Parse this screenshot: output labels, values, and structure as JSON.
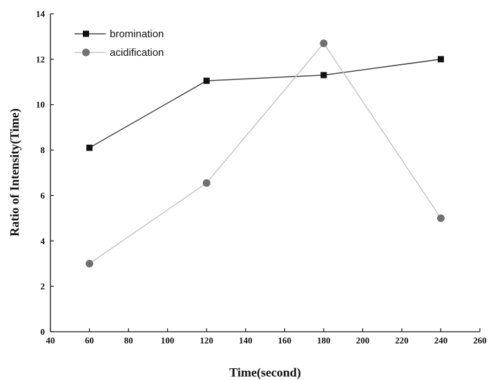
{
  "chart_data": {
    "type": "line",
    "xlabel": "Time(second)",
    "ylabel": "Ratio of Intensity(Time)",
    "xlim": [
      40,
      260
    ],
    "ylim": [
      0,
      14
    ],
    "xticks": [
      40,
      60,
      80,
      100,
      120,
      140,
      160,
      180,
      200,
      220,
      240,
      260
    ],
    "yticks": [
      0,
      2,
      4,
      6,
      8,
      10,
      12,
      14
    ],
    "grid": false,
    "legend_position": "top-left",
    "series": [
      {
        "name": "bromination",
        "marker": "square",
        "color": "#111111",
        "line_color": "#444444",
        "x": [
          60,
          120,
          180,
          240
        ],
        "y": [
          8.1,
          11.05,
          11.3,
          12.0
        ]
      },
      {
        "name": "acidification",
        "marker": "circle",
        "color": "#707070",
        "line_color": "#c4c4c4",
        "x": [
          60,
          120,
          180,
          240
        ],
        "y": [
          3.0,
          6.55,
          12.7,
          5.0
        ]
      }
    ]
  }
}
